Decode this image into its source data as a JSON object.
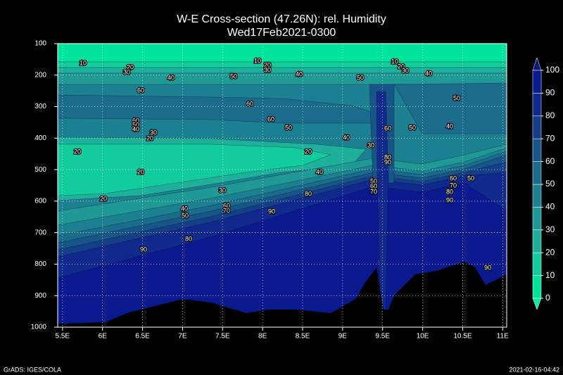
{
  "chart_data": {
    "type": "contour",
    "title": "W-E Cross-section (47.26N): rel. Humidity",
    "subtitle": "Wed17Feb2021-0300",
    "xlim": [
      5.44,
      11.05
    ],
    "xticks": [
      {
        "value": 5.5,
        "label": "5.5E"
      },
      {
        "value": 6,
        "label": "6E"
      },
      {
        "value": 6.5,
        "label": "6.5E"
      },
      {
        "value": 7,
        "label": "7E"
      },
      {
        "value": 7.5,
        "label": "7.5E"
      },
      {
        "value": 8,
        "label": "8E"
      },
      {
        "value": 8.5,
        "label": "8.5E"
      },
      {
        "value": 9,
        "label": "9E"
      },
      {
        "value": 9.5,
        "label": "9.5E"
      },
      {
        "value": 10,
        "label": "10E"
      },
      {
        "value": 10.5,
        "label": "10.5E"
      },
      {
        "value": 11,
        "label": "11E"
      }
    ],
    "ylim": [
      100,
      1000
    ],
    "yticks": [
      100,
      200,
      300,
      400,
      500,
      600,
      700,
      800,
      900,
      1000
    ],
    "grid": true,
    "colorbar": {
      "levels": [
        0,
        10,
        20,
        30,
        40,
        50,
        60,
        70,
        80,
        90,
        100
      ],
      "colors": [
        "#00e59c",
        "#12cc9e",
        "#1fb09c",
        "#1f9896",
        "#1c8090",
        "#1a6b8c",
        "#175589",
        "#143f88",
        "#0f2a8c",
        "#0a1a8e"
      ],
      "under_color": "#00f0a0",
      "over_color": "#0b1a7a"
    },
    "contour_labels": [
      10,
      20,
      30,
      40,
      50,
      60,
      60,
      60,
      50,
      40,
      30,
      20,
      20,
      20,
      20,
      30,
      40,
      50,
      60,
      70,
      80,
      90,
      10,
      20,
      30,
      40,
      50,
      10,
      20,
      30,
      40,
      50,
      60,
      50,
      40,
      30,
      20,
      40,
      80,
      90,
      60,
      50,
      40,
      80,
      90,
      50,
      60,
      70,
      60,
      50,
      70,
      80,
      90,
      90
    ],
    "footer_left": "GrADS: IGES/COLA",
    "footer_right": "2021-02-16-04:42"
  }
}
